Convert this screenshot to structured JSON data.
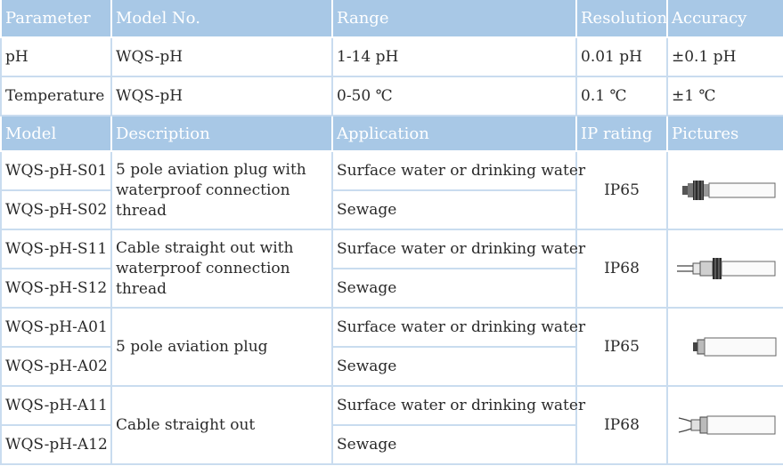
{
  "param_header": {
    "parameter": "Parameter",
    "model_no": "Model No.",
    "range": "Range",
    "resolution": "Resolution",
    "accuracy": "Accuracy"
  },
  "params": [
    {
      "parameter": "pH",
      "model_no": "WQS-pH",
      "range": "1-14 pH",
      "resolution": "0.01 pH",
      "accuracy": "±0.1 pH"
    },
    {
      "parameter": "Temperature",
      "model_no": "WQS-pH",
      "range": "0-50 ℃",
      "resolution": "0.1 ℃",
      "accuracy": "±1 ℃"
    }
  ],
  "model_header": {
    "model": "Model",
    "description": "Description",
    "application": "Application",
    "ip_rating": "IP rating",
    "pictures": "Pictures"
  },
  "groups": [
    {
      "models": [
        "WQS-pH-S01",
        "WQS-pH-S02"
      ],
      "description": "5 pole aviation plug with waterproof connection thread",
      "applications": [
        "Surface water or drinking water",
        "Sewage"
      ],
      "ip": "IP65",
      "picture": "probe-threaded-aviation-plug"
    },
    {
      "models": [
        "WQS-pH-S11",
        "WQS-pH-S12"
      ],
      "description": "Cable straight out with waterproof connection thread",
      "applications": [
        "Surface water or drinking water",
        "Sewage"
      ],
      "ip": "IP68",
      "picture": "probe-threaded-cable"
    },
    {
      "models": [
        "WQS-pH-A01",
        "WQS-pH-A02"
      ],
      "description": "5 pole aviation plug",
      "applications": [
        "Surface water or drinking water",
        "Sewage"
      ],
      "ip": "IP65",
      "picture": "probe-aviation-plug"
    },
    {
      "models": [
        "WQS-pH-A11",
        "WQS-pH-A12"
      ],
      "description": "Cable straight out",
      "applications": [
        "Surface water or drinking water",
        "Sewage"
      ],
      "ip": "IP68",
      "picture": "probe-cable"
    }
  ]
}
